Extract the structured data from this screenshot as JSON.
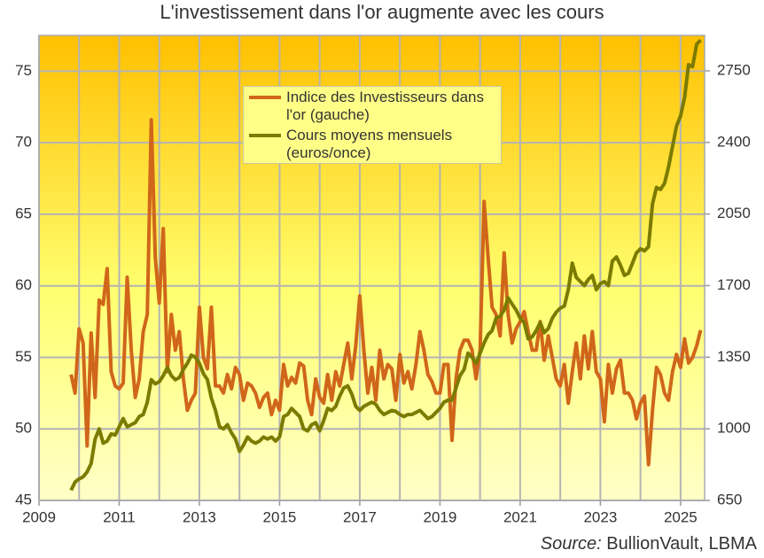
{
  "chart_data": {
    "type": "line",
    "title": "L'investissement dans l'or augmente avec les cours",
    "source_label": "Source:",
    "source_text": "BullionVault, LBMA",
    "x": [
      2009.8,
      2009.9,
      2010,
      2010.1,
      2010.2,
      2010.3,
      2010.4,
      2010.5,
      2010.6,
      2010.7,
      2010.8,
      2010.9,
      2011,
      2011.1,
      2011.2,
      2011.3,
      2011.4,
      2011.5,
      2011.6,
      2011.7,
      2011.8,
      2011.9,
      2012,
      2012.1,
      2012.2,
      2012.3,
      2012.4,
      2012.5,
      2012.6,
      2012.7,
      2012.8,
      2012.9,
      2013,
      2013.1,
      2013.2,
      2013.3,
      2013.4,
      2013.5,
      2013.6,
      2013.7,
      2013.8,
      2013.9,
      2014,
      2014.1,
      2014.2,
      2014.3,
      2014.4,
      2014.5,
      2014.6,
      2014.7,
      2014.8,
      2014.9,
      2015,
      2015.1,
      2015.2,
      2015.3,
      2015.4,
      2015.5,
      2015.6,
      2015.7,
      2015.8,
      2015.9,
      2016,
      2016.1,
      2016.2,
      2016.3,
      2016.4,
      2016.5,
      2016.6,
      2016.7,
      2016.8,
      2016.9,
      2017,
      2017.1,
      2017.2,
      2017.3,
      2017.4,
      2017.5,
      2017.6,
      2017.7,
      2017.8,
      2017.9,
      2018,
      2018.1,
      2018.2,
      2018.3,
      2018.4,
      2018.5,
      2018.6,
      2018.7,
      2018.8,
      2018.9,
      2019,
      2019.1,
      2019.2,
      2019.3,
      2019.4,
      2019.5,
      2019.6,
      2019.7,
      2019.8,
      2019.9,
      2020,
      2020.1,
      2020.2,
      2020.3,
      2020.4,
      2020.5,
      2020.6,
      2020.7,
      2020.8,
      2020.9,
      2021,
      2021.1,
      2021.2,
      2021.3,
      2021.4,
      2021.5,
      2021.6,
      2021.7,
      2021.8,
      2021.9,
      2022,
      2022.1,
      2022.2,
      2022.3,
      2022.4,
      2022.5,
      2022.6,
      2022.7,
      2022.8,
      2022.9,
      2023,
      2023.1,
      2023.2,
      2023.3,
      2023.4,
      2023.5,
      2023.6,
      2023.7,
      2023.8,
      2023.9,
      2024,
      2024.1,
      2024.2,
      2024.3,
      2024.4,
      2024.5,
      2024.6,
      2024.7,
      2024.8,
      2024.9,
      2025,
      2025.1,
      2025.2,
      2025.3,
      2025.4,
      2025.5
    ],
    "series": [
      {
        "name": "Indice des Investisseurs dans l'or (gauche)",
        "color": "#d0661a",
        "axis": "y",
        "values": [
          53.8,
          52.5,
          57,
          56,
          48.8,
          56.7,
          52.2,
          59,
          58.7,
          61.2,
          54,
          53,
          52.8,
          53.2,
          60.6,
          55.5,
          52.2,
          53.5,
          56.8,
          58,
          71.6,
          62,
          58.8,
          64,
          54,
          58,
          55.5,
          56.8,
          53.5,
          51.3,
          52,
          52.5,
          58.5,
          55,
          54.2,
          58.5,
          53,
          53,
          52.5,
          53.8,
          52.8,
          54.3,
          53.8,
          52,
          53.2,
          53,
          52.5,
          51.5,
          52.2,
          52.5,
          51,
          52,
          51.3,
          54.5,
          53,
          53.6,
          53.2,
          54.6,
          54.4,
          52,
          51,
          53.5,
          52.2,
          51.8,
          53.8,
          52,
          54,
          53,
          54.5,
          56,
          53.5,
          55.8,
          59.3,
          55.5,
          52.5,
          54.3,
          52,
          55.5,
          53.5,
          54.5,
          54.2,
          52,
          55.2,
          53.2,
          54,
          52.8,
          54.5,
          56.8,
          55.5,
          53.8,
          53.3,
          52.5,
          52.5,
          54.5,
          54.5,
          49.2,
          53.5,
          55.5,
          56.2,
          56.2,
          55.5,
          53.5,
          55.5,
          65.9,
          62,
          58.5,
          58,
          56.5,
          62.3,
          58,
          56,
          57,
          57.5,
          58.2,
          56.8,
          55.5,
          55.5,
          57.5,
          54.8,
          56.5,
          55,
          53.5,
          53,
          54.5,
          51.8,
          54,
          56,
          53.5,
          56.5,
          54.2,
          56.8,
          54,
          53.5,
          50.5,
          54.5,
          52.5,
          54.2,
          54.8,
          52.5,
          52.5,
          52,
          50.7,
          51.8,
          52.3,
          47.5,
          51.3,
          54.3,
          53.8,
          52.5,
          52,
          54,
          55.2,
          54.3,
          56.3,
          54.6,
          55,
          55.8,
          56.9
        ]
      },
      {
        "name": "Cours moyens mensuels (euros/once)",
        "color": "#7b7b00",
        "axis": "y2",
        "values": [
          700,
          740,
          755,
          765,
          790,
          830,
          950,
          1000,
          930,
          940,
          975,
          970,
          1010,
          1050,
          1010,
          1020,
          1030,
          1060,
          1070,
          1130,
          1240,
          1220,
          1230,
          1260,
          1300,
          1260,
          1240,
          1250,
          1290,
          1320,
          1360,
          1350,
          1320,
          1270,
          1240,
          1150,
          1090,
          1010,
          1000,
          1020,
          980,
          950,
          890,
          920,
          960,
          940,
          930,
          940,
          960,
          950,
          960,
          940,
          960,
          1060,
          1070,
          1100,
          1080,
          1060,
          1000,
          990,
          1020,
          1030,
          990,
          1040,
          1100,
          1090,
          1110,
          1160,
          1200,
          1210,
          1170,
          1110,
          1090,
          1110,
          1120,
          1130,
          1120,
          1090,
          1070,
          1080,
          1090,
          1085,
          1070,
          1060,
          1070,
          1070,
          1080,
          1090,
          1070,
          1050,
          1060,
          1080,
          1100,
          1130,
          1140,
          1140,
          1200,
          1260,
          1290,
          1370,
          1350,
          1320,
          1370,
          1420,
          1460,
          1480,
          1540,
          1550,
          1580,
          1640,
          1610,
          1580,
          1540,
          1520,
          1440,
          1450,
          1480,
          1520,
          1470,
          1490,
          1540,
          1570,
          1590,
          1600,
          1680,
          1810,
          1740,
          1720,
          1700,
          1730,
          1750,
          1680,
          1710,
          1720,
          1700,
          1820,
          1840,
          1800,
          1750,
          1760,
          1810,
          1860,
          1880,
          1870,
          1890,
          2100,
          2180,
          2170,
          2200,
          2280,
          2380,
          2480,
          2530,
          2620,
          2780,
          2770,
          2880,
          2900
        ]
      }
    ],
    "xlim": [
      2009,
      2025.6
    ],
    "xticks": [
      2009,
      2011,
      2013,
      2015,
      2017,
      2019,
      2021,
      2023,
      2025
    ],
    "ylim": [
      45,
      77.5
    ],
    "yticks": [
      45,
      50,
      55,
      60,
      65,
      70,
      75
    ],
    "y2lim": [
      650,
      2923
    ],
    "y2ticks": [
      650,
      1000,
      1350,
      1700,
      2050,
      2400,
      2750
    ],
    "grid": true
  }
}
